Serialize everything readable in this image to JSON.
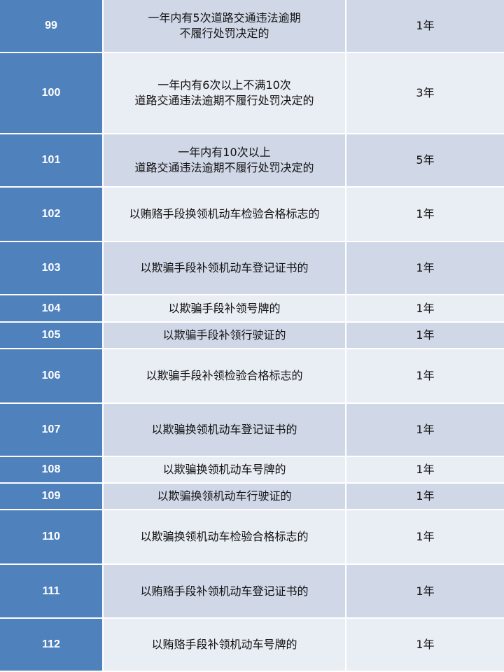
{
  "colors": {
    "header_blue": "#4f81bd",
    "row_dark": "#d0d8e8",
    "row_light": "#e9edf4"
  },
  "rows": [
    {
      "no": "99",
      "desc": "一年内有5次道路交通违法逾期\n不履行处罚决定的",
      "term": "1年"
    },
    {
      "no": "100",
      "desc": "一年内有6次以上不满10次\n道路交通违法逾期不履行处罚决定的",
      "term": "3年"
    },
    {
      "no": "101",
      "desc": "一年内有10次以上\n道路交通违法逾期不履行处罚决定的",
      "term": "5年"
    },
    {
      "no": "102",
      "desc": "以贿赂手段换领机动车检验合格标志的",
      "term": "1年"
    },
    {
      "no": "103",
      "desc": "以欺骗手段补领机动车登记证书的",
      "term": "1年"
    },
    {
      "no": "104",
      "desc": "以欺骗手段补领号牌的",
      "term": "1年"
    },
    {
      "no": "105",
      "desc": "以欺骗手段补领行驶证的",
      "term": "1年"
    },
    {
      "no": "106",
      "desc": "以欺骗手段补领检验合格标志的",
      "term": "1年"
    },
    {
      "no": "107",
      "desc": "以欺骗换领机动车登记证书的",
      "term": "1年"
    },
    {
      "no": "108",
      "desc": "以欺骗换领机动车号牌的",
      "term": "1年"
    },
    {
      "no": "109",
      "desc": "以欺骗换领机动车行驶证的",
      "term": "1年"
    },
    {
      "no": "110",
      "desc": "以欺骗换领机动车检验合格标志的",
      "term": "1年"
    },
    {
      "no": "111",
      "desc": "以贿赂手段补领机动车登记证书的",
      "term": "1年"
    },
    {
      "no": "112",
      "desc": "以贿赂手段补领机动车号牌的",
      "term": "1年"
    }
  ]
}
